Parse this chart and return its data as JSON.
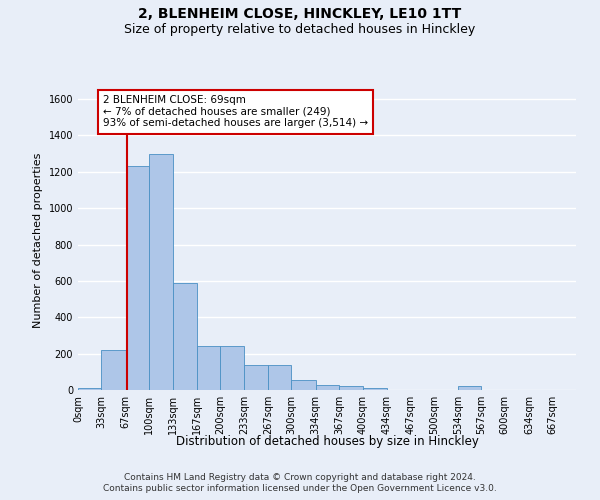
{
  "title": "2, BLENHEIM CLOSE, HINCKLEY, LE10 1TT",
  "subtitle": "Size of property relative to detached houses in Hinckley",
  "xlabel": "Distribution of detached houses by size in Hinckley",
  "ylabel": "Number of detached properties",
  "bin_labels": [
    "0sqm",
    "33sqm",
    "67sqm",
    "100sqm",
    "133sqm",
    "167sqm",
    "200sqm",
    "233sqm",
    "267sqm",
    "300sqm",
    "334sqm",
    "367sqm",
    "400sqm",
    "434sqm",
    "467sqm",
    "500sqm",
    "534sqm",
    "567sqm",
    "600sqm",
    "634sqm",
    "667sqm"
  ],
  "bin_edges": [
    0,
    33,
    67,
    100,
    133,
    167,
    200,
    233,
    267,
    300,
    334,
    367,
    400,
    434,
    467,
    500,
    534,
    567,
    600,
    634,
    667
  ],
  "bar_heights": [
    10,
    220,
    1230,
    1300,
    590,
    240,
    240,
    140,
    140,
    55,
    25,
    20,
    10,
    0,
    0,
    0,
    20,
    0,
    0,
    0,
    0
  ],
  "bar_color": "#aec6e8",
  "bar_edge_color": "#4a90c4",
  "property_size": 69,
  "vline_color": "#cc0000",
  "annotation_line1": "2 BLENHEIM CLOSE: 69sqm",
  "annotation_line2": "← 7% of detached houses are smaller (249)",
  "annotation_line3": "93% of semi-detached houses are larger (3,514) →",
  "annotation_box_color": "#ffffff",
  "annotation_box_edge_color": "#cc0000",
  "ylim": [
    0,
    1650
  ],
  "yticks": [
    0,
    200,
    400,
    600,
    800,
    1000,
    1200,
    1400,
    1600
  ],
  "background_color": "#e8eef8",
  "grid_color": "#ffffff",
  "footer_line1": "Contains HM Land Registry data © Crown copyright and database right 2024.",
  "footer_line2": "Contains public sector information licensed under the Open Government Licence v3.0.",
  "title_fontsize": 10,
  "subtitle_fontsize": 9,
  "xlabel_fontsize": 8.5,
  "ylabel_fontsize": 8,
  "tick_fontsize": 7,
  "annotation_fontsize": 7.5,
  "footer_fontsize": 6.5,
  "xlim_max": 700
}
